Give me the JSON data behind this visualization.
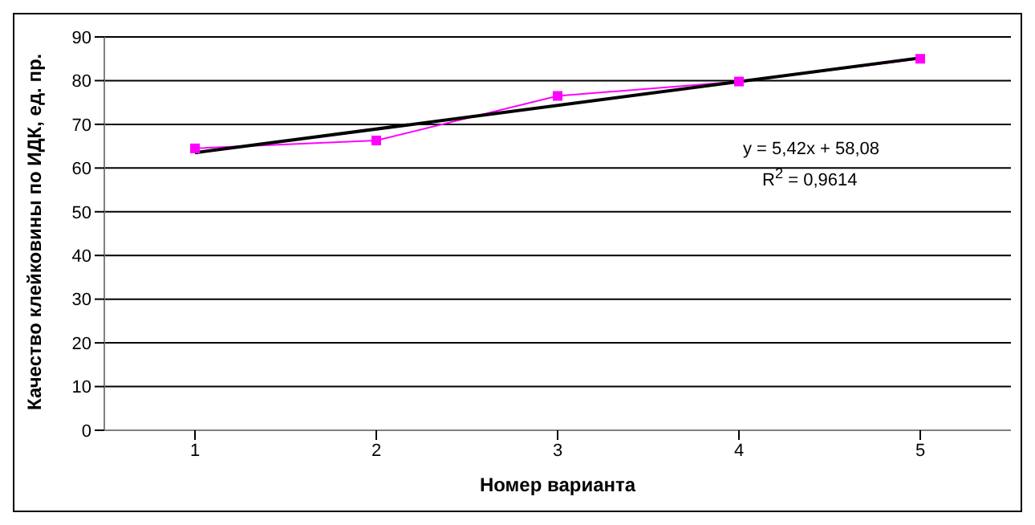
{
  "chart_data": {
    "type": "line",
    "xlabel": "Номер варианта",
    "ylabel": "Качество клейковины по ИДК, ед. пр.",
    "x": [
      1,
      2,
      3,
      4,
      5
    ],
    "xlim": [
      0.5,
      5.5
    ],
    "xticks": [
      1,
      2,
      3,
      4,
      5
    ],
    "ylim": [
      0,
      90
    ],
    "yticks": [
      0,
      10,
      20,
      30,
      40,
      50,
      60,
      70,
      80,
      90
    ],
    "grid": "y",
    "series": [
      {
        "color": "#ff00ff",
        "marker": "square",
        "values": [
          64.5,
          66.3,
          76.5,
          79.8,
          85
        ]
      },
      {
        "type": "line",
        "color": "#000000",
        "marker": "none",
        "x": [
          1,
          5
        ],
        "values": [
          63.5,
          85.2
        ]
      }
    ],
    "annotations": [
      "y = 5,42x + 58,08",
      "R$^{2}$ = 0,9614"
    ]
  }
}
